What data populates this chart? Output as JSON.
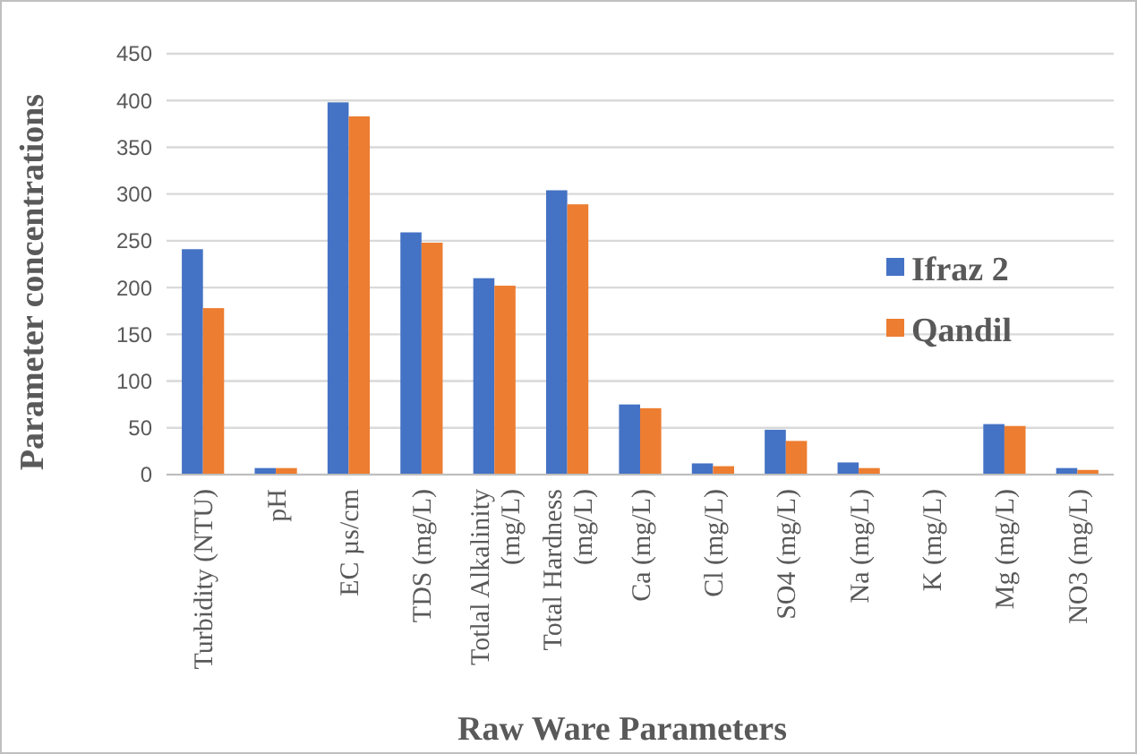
{
  "chart_data": {
    "type": "bar",
    "xlabel": "Raw Ware Parameters",
    "ylabel": "Parameter concentrations",
    "categories": [
      "Turbidity (NTU)",
      "pH",
      "EC µs/cm",
      "TDS (mg/L)",
      "Totlal Alkalinity (mg/L)",
      "Total Hardness (mg/L)",
      "Ca (mg/L)",
      "Cl (mg/L)",
      "SO4 (mg/L)",
      "Na (mg/L)",
      "K (mg/L)",
      "Mg (mg/L)",
      "NO3 (mg/L)"
    ],
    "series": [
      {
        "name": "Ifraz 2",
        "color": "#4472c4",
        "values": [
          241,
          7,
          398,
          259,
          210,
          304,
          75,
          12,
          48,
          13,
          0,
          54,
          7
        ]
      },
      {
        "name": "Qandil",
        "color": "#ed7d31",
        "values": [
          178,
          7,
          383,
          248,
          202,
          289,
          71,
          9,
          36,
          7,
          0,
          52,
          5
        ]
      }
    ],
    "ylim": [
      0,
      450
    ],
    "yticks": [
      0,
      50,
      100,
      150,
      200,
      250,
      300,
      350,
      400,
      450
    ],
    "grid": "y",
    "legend": "right"
  }
}
